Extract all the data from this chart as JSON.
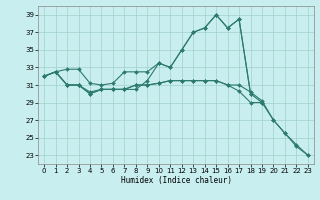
{
  "title": "",
  "xlabel": "Humidex (Indice chaleur)",
  "bg_color": "#c8eef0",
  "grid_color": "#a0d0c8",
  "line_color": "#2d7a6e",
  "ylim": [
    22.0,
    40.0
  ],
  "xlim": [
    -0.5,
    23.5
  ],
  "yticks": [
    23,
    25,
    27,
    29,
    31,
    33,
    35,
    37,
    39
  ],
  "xticks": [
    0,
    1,
    2,
    3,
    4,
    5,
    6,
    7,
    8,
    9,
    10,
    11,
    12,
    13,
    14,
    15,
    16,
    17,
    18,
    19,
    20,
    21,
    22,
    23
  ],
  "line1_x": [
    0,
    1,
    2,
    3,
    4,
    5,
    6,
    7,
    8,
    9,
    10,
    11,
    12,
    13,
    14,
    15,
    16,
    17,
    18,
    19
  ],
  "line1_y": [
    32.0,
    32.5,
    32.8,
    32.8,
    31.2,
    31.0,
    31.2,
    32.5,
    32.5,
    32.5,
    33.5,
    33.0,
    35.0,
    37.0,
    37.5,
    39.0,
    37.5,
    38.5,
    30.0,
    29.0
  ],
  "line2_x": [
    0,
    1,
    2,
    3,
    4,
    5,
    6,
    7,
    8,
    9,
    10,
    11,
    12,
    13,
    14,
    15,
    16,
    17,
    18
  ],
  "line2_y": [
    32.0,
    32.5,
    31.0,
    31.0,
    30.2,
    30.5,
    30.5,
    30.5,
    30.5,
    31.5,
    33.5,
    33.0,
    35.0,
    37.0,
    37.5,
    39.0,
    37.5,
    38.5,
    30.0
  ],
  "line3_x": [
    0,
    1,
    2,
    3,
    4,
    5,
    6,
    7,
    8,
    9,
    10,
    11,
    12,
    13,
    14,
    15,
    16,
    17,
    18,
    19,
    20,
    21,
    22,
    23
  ],
  "line3_y": [
    32.0,
    32.5,
    31.0,
    31.0,
    30.0,
    30.5,
    30.5,
    30.5,
    31.0,
    31.0,
    31.2,
    31.5,
    31.5,
    31.5,
    31.5,
    31.5,
    31.0,
    31.0,
    30.2,
    29.2,
    27.0,
    25.5,
    24.2,
    23.0
  ],
  "line4_x": [
    0,
    1,
    2,
    3,
    4,
    5,
    6,
    7,
    8,
    9,
    10,
    11,
    12,
    13,
    14,
    15,
    16,
    17,
    18,
    19,
    20,
    21,
    22,
    23
  ],
  "line4_y": [
    32.0,
    32.5,
    31.0,
    31.0,
    30.0,
    30.5,
    30.5,
    30.5,
    31.0,
    31.0,
    31.2,
    31.5,
    31.5,
    31.5,
    31.5,
    31.5,
    31.0,
    30.3,
    29.0,
    29.0,
    27.0,
    25.5,
    24.0,
    23.0
  ]
}
